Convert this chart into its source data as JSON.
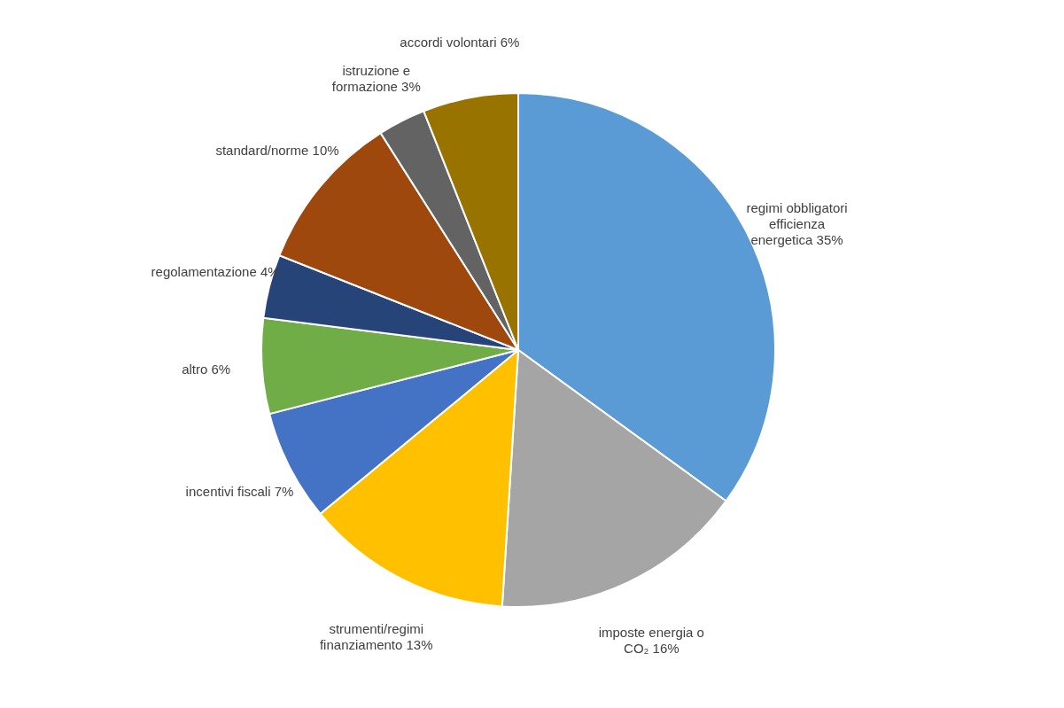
{
  "chart_data": {
    "type": "pie",
    "categories": [
      "regimi obbligatori efficienza energetica",
      "imposte energia o CO₂",
      "strumenti/regimi finanziamento",
      "incentivi fiscali",
      "altro",
      "regolamentazione",
      "standard/norme",
      "istruzione e formazione",
      "accordi volontari"
    ],
    "values": [
      35,
      16,
      13,
      7,
      6,
      4,
      10,
      3,
      6
    ],
    "value_labels": [
      "35%",
      "16%",
      "13%",
      "7%",
      "6%",
      "4%",
      "10%",
      "3%",
      "6%"
    ],
    "colors": [
      "#5b9bd5",
      "#a5a5a5",
      "#ffc000",
      "#4472c4",
      "#70ad47",
      "#264478",
      "#9e480e",
      "#636363",
      "#997300"
    ],
    "legend": false
  }
}
